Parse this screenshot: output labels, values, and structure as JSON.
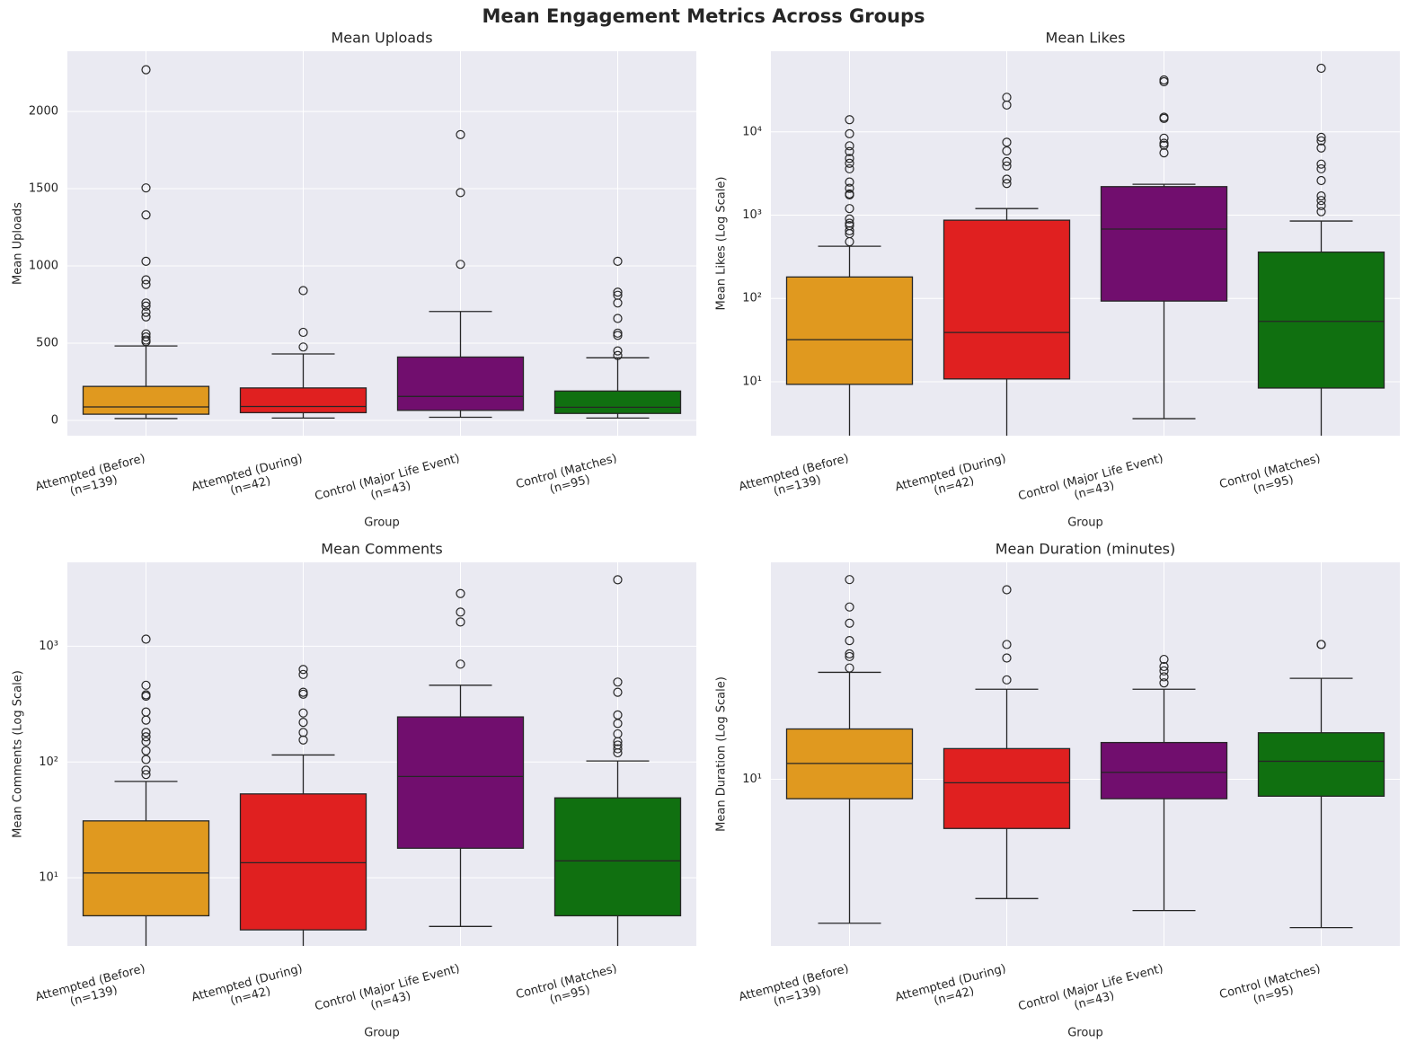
{
  "title": "Mean Engagement Metrics Across Groups",
  "chart_data": [
    {
      "type": "box",
      "title": "Mean Uploads",
      "xlabel": "Group",
      "ylabel": "Mean Uploads",
      "log": false,
      "grid": true,
      "categories": [
        "Attempted (Before)\n(n=139)",
        "Attempted (During)\n(n=42)",
        "Control (Major Life Event)\n(n=43)",
        "Control (Matches)\n(n=95)"
      ],
      "colors": [
        "#e0991f",
        "#e02020",
        "#710e6e",
        "#107010"
      ],
      "ylim": [
        -99,
        2390
      ],
      "yticks": [
        0,
        500,
        1000,
        1500,
        2000
      ],
      "boxes": [
        {
          "whislo": 12,
          "q1": 40,
          "med": 87,
          "q3": 220,
          "whishi": 482,
          "fliers": [
            2270,
            1505,
            1330,
            1030,
            910,
            880,
            760,
            740,
            700,
            670,
            560,
            540,
            520,
            510
          ]
        },
        {
          "whislo": 15,
          "q1": 50,
          "med": 90,
          "q3": 210,
          "whishi": 430,
          "fliers": [
            840,
            570,
            475
          ]
        },
        {
          "whislo": 20,
          "q1": 65,
          "med": 155,
          "q3": 410,
          "whishi": 705,
          "fliers": [
            1850,
            1475,
            1010
          ]
        },
        {
          "whislo": 15,
          "q1": 45,
          "med": 85,
          "q3": 190,
          "whishi": 405,
          "fliers": [
            1030,
            830,
            810,
            760,
            660,
            565,
            550,
            450,
            420
          ]
        }
      ]
    },
    {
      "type": "box",
      "title": "Mean Likes",
      "xlabel": "Group",
      "ylabel": "Mean Likes (Log Scale)",
      "log": true,
      "grid": true,
      "categories": [
        "Attempted (Before)\n(n=139)",
        "Attempted (During)\n(n=42)",
        "Control (Major Life Event)\n(n=43)",
        "Control (Matches)\n(n=95)"
      ],
      "colors": [
        "#e0991f",
        "#e02020",
        "#710e6e",
        "#107010"
      ],
      "ylim": [
        2.25,
        93000
      ],
      "yticks": [
        {
          "value": 10,
          "label": "10¹"
        },
        {
          "value": 100,
          "label": "10²"
        },
        {
          "value": 1000,
          "label": "10³"
        },
        {
          "value": 10000,
          "label": "10⁴"
        }
      ],
      "boxes": [
        {
          "whislo": 1,
          "q1": 9.3,
          "med": 32,
          "q3": 181,
          "whishi": 423,
          "fliers": [
            14000,
            9500,
            6800,
            5800,
            4800,
            4200,
            3600,
            2500,
            2100,
            1800,
            1750,
            1200,
            900,
            800,
            750,
            650,
            600,
            480
          ]
        },
        {
          "whislo": 1,
          "q1": 10.8,
          "med": 39,
          "q3": 870,
          "whishi": 1200,
          "fliers": [
            26000,
            21000,
            7500,
            5900,
            4400,
            3900,
            2700,
            2400
          ]
        },
        {
          "whislo": 3.6,
          "q1": 93,
          "med": 680,
          "q3": 2200,
          "whishi": 2350,
          "fliers": [
            42000,
            40000,
            15000,
            14500,
            8400,
            7300,
            6900,
            5600
          ]
        },
        {
          "whislo": 1,
          "q1": 8.4,
          "med": 53,
          "q3": 360,
          "whishi": 850,
          "fliers": [
            58000,
            8600,
            7800,
            6400,
            4100,
            3600,
            2600,
            1700,
            1500,
            1300,
            1100
          ]
        }
      ]
    },
    {
      "type": "box",
      "title": "Mean Comments",
      "xlabel": "Group",
      "ylabel": "Mean Comments (Log Scale)",
      "log": true,
      "grid": true,
      "categories": [
        "Attempted (Before)\n(n=139)",
        "Attempted (During)\n(n=42)",
        "Control (Major Life Event)\n(n=43)",
        "Control (Matches)\n(n=95)"
      ],
      "colors": [
        "#e0991f",
        "#e02020",
        "#710e6e",
        "#107010"
      ],
      "ylim": [
        2.58,
        5300
      ],
      "yticks": [
        {
          "value": 10,
          "label": "10¹"
        },
        {
          "value": 100,
          "label": "10²"
        },
        {
          "value": 1000,
          "label": "10³"
        }
      ],
      "boxes": [
        {
          "whislo": 1,
          "q1": 4.7,
          "med": 11,
          "q3": 31,
          "whishi": 68,
          "fliers": [
            1150,
            460,
            380,
            370,
            270,
            230,
            180,
            165,
            150,
            125,
            105,
            85,
            78
          ]
        },
        {
          "whislo": 1,
          "q1": 3.55,
          "med": 13.5,
          "q3": 53,
          "whishi": 115,
          "fliers": [
            630,
            570,
            400,
            385,
            265,
            220,
            180,
            155
          ]
        },
        {
          "whislo": 3.8,
          "q1": 18,
          "med": 75,
          "q3": 245,
          "whishi": 460,
          "fliers": [
            2850,
            1970,
            1620,
            700
          ]
        },
        {
          "whislo": 1,
          "q1": 4.7,
          "med": 14,
          "q3": 49,
          "whishi": 102,
          "fliers": [
            3750,
            490,
            400,
            255,
            215,
            175,
            150,
            140,
            130,
            120
          ]
        }
      ]
    },
    {
      "type": "box",
      "title": "Mean Duration (minutes)",
      "xlabel": "Group",
      "ylabel": "Mean Duration (Log Scale)",
      "log": true,
      "grid": true,
      "categories": [
        "Attempted (Before)\n(n=139)",
        "Attempted (During)\n(n=42)",
        "Control (Major Life Event)\n(n=43)",
        "Control (Matches)\n(n=95)"
      ],
      "colors": [
        "#e0991f",
        "#e02020",
        "#710e6e",
        "#107010"
      ],
      "ylim": [
        4.9,
        25.3
      ],
      "yticks": [
        {
          "value": 10,
          "label": "10¹"
        }
      ],
      "boxes": [
        {
          "whislo": 5.4,
          "q1": 9.2,
          "med": 10.7,
          "q3": 12.4,
          "whishi": 15.8,
          "fliers": [
            23.5,
            20.9,
            19.5,
            18.1,
            17.1,
            16.9,
            16.1
          ]
        },
        {
          "whislo": 6.0,
          "q1": 8.1,
          "med": 9.85,
          "q3": 11.4,
          "whishi": 14.7,
          "fliers": [
            22.5,
            17.8,
            16.8,
            15.3
          ]
        },
        {
          "whislo": 5.7,
          "q1": 9.2,
          "med": 10.3,
          "q3": 11.7,
          "whishi": 14.7,
          "fliers": [
            16.7,
            16.2,
            15.9,
            15.5,
            15.1
          ]
        },
        {
          "whislo": 5.3,
          "q1": 9.3,
          "med": 10.8,
          "q3": 12.2,
          "whishi": 15.4,
          "fliers": [
            17.8,
            17.8
          ]
        }
      ]
    }
  ]
}
